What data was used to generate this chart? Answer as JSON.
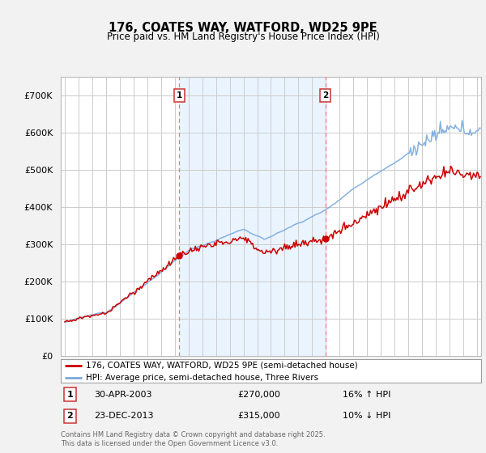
{
  "title": "176, COATES WAY, WATFORD, WD25 9PE",
  "subtitle": "Price paid vs. HM Land Registry's House Price Index (HPI)",
  "legend_label_red": "176, COATES WAY, WATFORD, WD25 9PE (semi-detached house)",
  "legend_label_blue": "HPI: Average price, semi-detached house, Three Rivers",
  "footnote": "Contains HM Land Registry data © Crown copyright and database right 2025.\nThis data is licensed under the Open Government Licence v3.0.",
  "transaction1_label": "1",
  "transaction1_date": "30-APR-2003",
  "transaction1_price": "£270,000",
  "transaction1_hpi": "16% ↑ HPI",
  "transaction2_label": "2",
  "transaction2_date": "23-DEC-2013",
  "transaction2_price": "£315,000",
  "transaction2_hpi": "10% ↓ HPI",
  "marker1_x": 2003.33,
  "marker1_y": 270000,
  "marker2_x": 2013.97,
  "marker2_y": 315000,
  "vline1_x": 2003.33,
  "vline2_x": 2013.97,
  "ylim": [
    0,
    750000
  ],
  "xlim_start": 1994.7,
  "xlim_end": 2025.3,
  "background_color": "#f2f2f2",
  "plot_bg_color": "#ffffff",
  "shade_color": "#ddeeff",
  "red_color": "#cc0000",
  "blue_color": "#7aaadd",
  "vline_color": "#ee7777",
  "grid_color": "#cccccc"
}
